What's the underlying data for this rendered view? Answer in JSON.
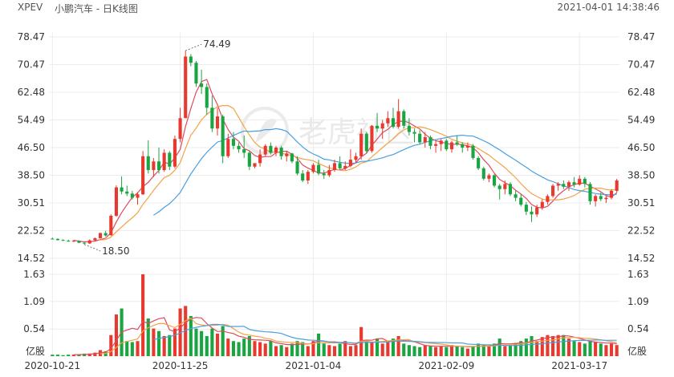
{
  "header": {
    "symbol": "XPEV",
    "title": "小鹏汽车 - 日K线图",
    "datetime": "2021-04-01 14:38:46"
  },
  "watermark": {
    "text": "老虎社区"
  },
  "colors": {
    "up": "#e8392e",
    "down": "#1aa542",
    "ma_short": "#e14a5e",
    "ma_mid": "#f3a245",
    "ma_long": "#4a9fe0",
    "vol_ma_short": "#e14a5e",
    "vol_ma_mid": "#f3a245",
    "vol_ma_long": "#4a9fe0",
    "grid": "#ececec"
  },
  "chart_data": {
    "type": "candlestick",
    "title": "小鹏汽车 - 日K线图",
    "price_axis": {
      "ticks": [
        "78.47",
        "70.47",
        "62.48",
        "54.49",
        "46.50",
        "38.50",
        "30.51",
        "22.52",
        "14.52"
      ],
      "ylim": [
        14.52,
        78.47
      ]
    },
    "volume_axis": {
      "ticks": [
        "1.63",
        "1.09",
        "0.54"
      ],
      "unit": "亿股",
      "ylim": [
        0,
        1.63
      ]
    },
    "date_labels": [
      {
        "index": 0,
        "text": "2020-10-21"
      },
      {
        "index": 24,
        "text": "2020-11-25"
      },
      {
        "index": 49,
        "text": "2021-01-04"
      },
      {
        "index": 74,
        "text": "2021-02-09"
      },
      {
        "index": 99,
        "text": "2021-03-17"
      }
    ],
    "annotations": [
      {
        "index": 25,
        "price": 74.49,
        "text": "74.49"
      },
      {
        "index": 6,
        "price": 18.5,
        "text": "18.50"
      }
    ],
    "candles": [
      [
        20.2,
        20.5,
        20.0,
        20.1
      ],
      [
        20.1,
        20.3,
        19.6,
        19.8
      ],
      [
        19.8,
        20.0,
        19.5,
        19.6
      ],
      [
        19.6,
        19.9,
        19.3,
        19.4
      ],
      [
        19.4,
        19.8,
        19.2,
        19.6
      ],
      [
        19.6,
        19.7,
        18.9,
        19.0
      ],
      [
        19.0,
        19.2,
        18.5,
        18.8
      ],
      [
        18.8,
        20.0,
        18.7,
        19.7
      ],
      [
        19.7,
        20.5,
        19.5,
        20.3
      ],
      [
        20.3,
        22.0,
        20.2,
        21.8
      ],
      [
        21.8,
        22.5,
        20.8,
        21.1
      ],
      [
        21.2,
        27.2,
        21.0,
        26.8
      ],
      [
        26.8,
        35.6,
        26.5,
        35.0
      ],
      [
        35.0,
        38.2,
        33.0,
        33.8
      ],
      [
        33.8,
        35.5,
        32.5,
        33.2
      ],
      [
        33.2,
        34.0,
        31.5,
        32.0
      ],
      [
        32.0,
        33.6,
        30.0,
        33.0
      ],
      [
        33.0,
        45.5,
        32.8,
        44.0
      ],
      [
        44.0,
        48.6,
        39.0,
        40.0
      ],
      [
        40.0,
        43.5,
        38.0,
        42.5
      ],
      [
        42.5,
        46.5,
        39.0,
        40.0
      ],
      [
        40.0,
        46.0,
        39.5,
        45.0
      ],
      [
        45.0,
        45.5,
        40.0,
        41.0
      ],
      [
        41.0,
        50.0,
        40.5,
        49.0
      ],
      [
        49.0,
        58.0,
        48.0,
        55.0
      ],
      [
        55.0,
        74.49,
        55.0,
        72.8
      ],
      [
        72.8,
        73.5,
        70.0,
        71.0
      ],
      [
        71.0,
        71.5,
        64.0,
        65.0
      ],
      [
        65.0,
        69.0,
        62.0,
        64.0
      ],
      [
        64.0,
        65.0,
        56.0,
        58.0
      ],
      [
        58.0,
        61.5,
        51.0,
        52.0
      ],
      [
        52.0,
        58.0,
        50.0,
        55.5
      ],
      [
        55.5,
        56.0,
        42.0,
        44.0
      ],
      [
        44.0,
        50.5,
        43.5,
        49.0
      ],
      [
        49.0,
        51.0,
        46.0,
        47.0
      ],
      [
        47.0,
        48.0,
        45.0,
        46.0
      ],
      [
        46.0,
        50.0,
        43.5,
        45.0
      ],
      [
        45.0,
        45.5,
        40.0,
        41.0
      ],
      [
        41.0,
        42.0,
        40.5,
        42.0
      ],
      [
        42.0,
        46.0,
        41.0,
        44.5
      ],
      [
        44.5,
        47.5,
        44.0,
        47.0
      ],
      [
        47.0,
        48.0,
        44.5,
        45.0
      ],
      [
        45.0,
        47.0,
        44.0,
        46.5
      ],
      [
        46.5,
        47.0,
        43.0,
        44.0
      ],
      [
        44.0,
        45.5,
        42.5,
        44.8
      ],
      [
        44.8,
        45.0,
        42.0,
        42.5
      ],
      [
        42.5,
        44.0,
        38.5,
        39.0
      ],
      [
        39.0,
        40.0,
        36.5,
        37.0
      ],
      [
        37.0,
        40.0,
        36.0,
        39.5
      ],
      [
        39.5,
        42.0,
        39.0,
        41.5
      ],
      [
        41.5,
        43.0,
        38.5,
        39.0
      ],
      [
        39.0,
        40.0,
        37.5,
        38.5
      ],
      [
        38.5,
        41.5,
        38.0,
        40.0
      ],
      [
        40.0,
        43.0,
        39.5,
        42.0
      ],
      [
        42.0,
        44.0,
        40.0,
        40.5
      ],
      [
        40.5,
        42.5,
        40.0,
        41.2
      ],
      [
        41.2,
        46.0,
        40.8,
        43.0
      ],
      [
        43.0,
        45.0,
        42.0,
        44.0
      ],
      [
        44.0,
        52.0,
        43.0,
        50.5
      ],
      [
        50.5,
        51.0,
        45.0,
        45.5
      ],
      [
        45.5,
        53.0,
        45.0,
        52.8
      ],
      [
        52.8,
        56.5,
        51.0,
        52.0
      ],
      [
        52.0,
        54.5,
        49.0,
        53.5
      ],
      [
        53.5,
        57.0,
        52.5,
        55.0
      ],
      [
        55.0,
        58.0,
        52.0,
        52.5
      ],
      [
        52.5,
        60.5,
        52.0,
        57.0
      ],
      [
        57.0,
        57.5,
        52.0,
        52.8
      ],
      [
        52.8,
        55.0,
        50.0,
        51.0
      ],
      [
        51.0,
        52.0,
        48.0,
        50.5
      ],
      [
        50.5,
        51.5,
        47.5,
        48.0
      ],
      [
        48.0,
        51.0,
        46.5,
        49.5
      ],
      [
        49.5,
        50.0,
        46.0,
        47.0
      ],
      [
        47.0,
        48.5,
        45.0,
        47.5
      ],
      [
        47.5,
        49.0,
        45.5,
        48.5
      ],
      [
        48.5,
        49.0,
        45.5,
        46.0
      ],
      [
        46.0,
        48.5,
        45.0,
        48.0
      ],
      [
        48.0,
        50.0,
        47.0,
        47.5
      ],
      [
        47.5,
        48.0,
        45.0,
        46.5
      ],
      [
        46.5,
        48.0,
        45.5,
        47.0
      ],
      [
        47.0,
        47.5,
        43.0,
        43.5
      ],
      [
        43.5,
        44.0,
        40.0,
        40.5
      ],
      [
        40.5,
        41.0,
        37.0,
        37.5
      ],
      [
        37.5,
        39.0,
        36.5,
        38.5
      ],
      [
        38.5,
        38.8,
        35.0,
        35.5
      ],
      [
        35.5,
        36.0,
        31.5,
        34.5
      ],
      [
        34.5,
        37.0,
        33.0,
        36.0
      ],
      [
        36.0,
        36.5,
        32.5,
        33.0
      ],
      [
        33.0,
        34.0,
        31.0,
        32.0
      ],
      [
        32.0,
        33.0,
        29.5,
        30.0
      ],
      [
        30.0,
        30.8,
        27.0,
        28.0
      ],
      [
        28.0,
        29.5,
        25.0,
        27.2
      ],
      [
        27.2,
        30.0,
        26.5,
        29.2
      ],
      [
        29.2,
        31.5,
        28.5,
        30.8
      ],
      [
        30.8,
        33.0,
        30.0,
        32.5
      ],
      [
        32.5,
        36.0,
        32.0,
        35.5
      ],
      [
        35.5,
        36.5,
        34.0,
        36.0
      ],
      [
        36.0,
        37.0,
        34.5,
        35.2
      ],
      [
        35.2,
        37.0,
        34.0,
        36.5
      ],
      [
        36.5,
        38.0,
        35.0,
        35.8
      ],
      [
        35.8,
        38.5,
        35.5,
        37.5
      ],
      [
        37.5,
        38.0,
        35.0,
        36.0
      ],
      [
        36.0,
        36.5,
        30.0,
        31.0
      ],
      [
        31.0,
        33.0,
        29.5,
        32.5
      ],
      [
        32.5,
        33.5,
        31.0,
        31.6
      ],
      [
        31.6,
        32.5,
        30.5,
        32.0
      ],
      [
        32.0,
        34.5,
        31.5,
        34.0
      ],
      [
        34.0,
        37.5,
        33.5,
        37.0
      ]
    ],
    "volumes": [
      0.03,
      0.03,
      0.02,
      0.03,
      0.03,
      0.04,
      0.05,
      0.05,
      0.07,
      0.12,
      0.1,
      0.42,
      0.83,
      0.95,
      0.3,
      0.28,
      0.3,
      1.63,
      0.75,
      0.55,
      0.5,
      0.4,
      0.42,
      0.55,
      0.95,
      1.0,
      0.8,
      0.55,
      0.5,
      0.4,
      0.55,
      0.45,
      0.6,
      0.35,
      0.3,
      0.28,
      0.35,
      0.4,
      0.3,
      0.28,
      0.25,
      0.3,
      0.2,
      0.22,
      0.18,
      0.25,
      0.3,
      0.28,
      0.2,
      0.3,
      0.45,
      0.25,
      0.22,
      0.2,
      0.25,
      0.3,
      0.2,
      0.22,
      0.58,
      0.3,
      0.28,
      0.35,
      0.25,
      0.3,
      0.35,
      0.4,
      0.25,
      0.22,
      0.2,
      0.18,
      0.22,
      0.2,
      0.18,
      0.2,
      0.18,
      0.22,
      0.2,
      0.18,
      0.15,
      0.2,
      0.25,
      0.22,
      0.2,
      0.25,
      0.35,
      0.2,
      0.22,
      0.25,
      0.3,
      0.35,
      0.4,
      0.3,
      0.38,
      0.42,
      0.4,
      0.42,
      0.42,
      0.35,
      0.3,
      0.28,
      0.25,
      0.3,
      0.28,
      0.25,
      0.22,
      0.25,
      0.22
    ]
  }
}
